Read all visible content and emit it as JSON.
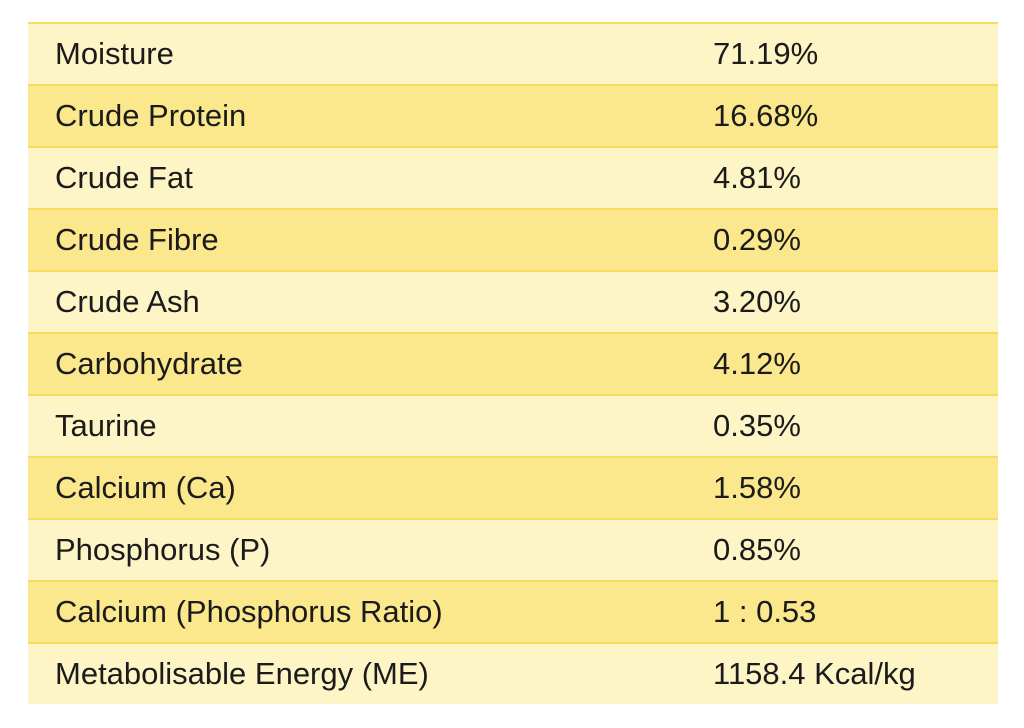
{
  "table": {
    "rows": [
      [
        "Moisture",
        "71.19%"
      ],
      [
        "Crude Protein",
        "16.68%"
      ],
      [
        "Crude Fat",
        "4.81%"
      ],
      [
        "Crude Fibre",
        "0.29%"
      ],
      [
        "Crude Ash",
        "3.20%"
      ],
      [
        "Carbohydrate",
        "4.12%"
      ],
      [
        "Taurine",
        "0.35%"
      ],
      [
        "Calcium (Ca)",
        "1.58%"
      ],
      [
        "Phosphorus (P)",
        "0.85%"
      ],
      [
        "Calcium (Phosphorus Ratio)",
        "1 : 0.53"
      ],
      [
        "Metabolisable Energy (ME)",
        "1158.4 Kcal/kg"
      ]
    ]
  }
}
